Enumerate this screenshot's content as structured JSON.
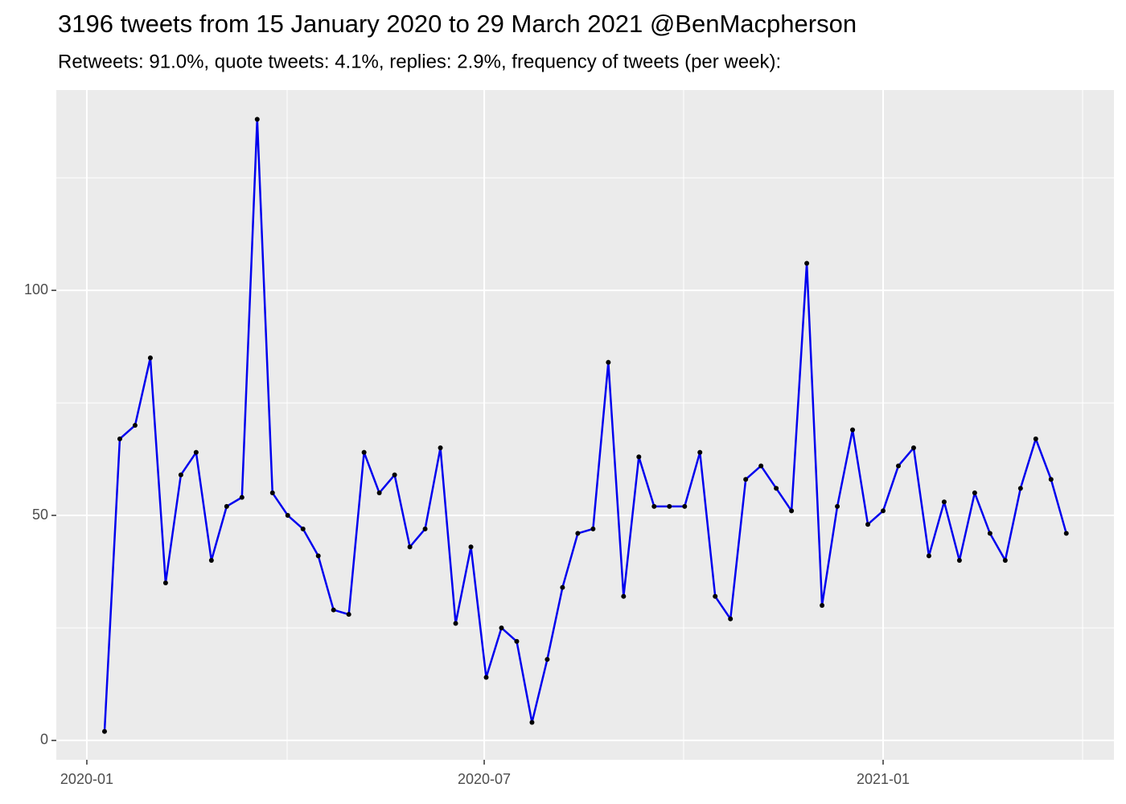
{
  "chart_data": {
    "type": "line",
    "title": "3196 tweets from 15 January 2020 to 29 March 2021 @BenMacpherson",
    "subtitle": "Retweets: 91.0%, quote tweets: 4.1%, replies: 2.9%, frequency of tweets (per week):",
    "values": [
      2,
      67,
      70,
      85,
      35,
      59,
      64,
      40,
      52,
      54,
      138,
      55,
      50,
      47,
      41,
      29,
      28,
      64,
      55,
      59,
      43,
      47,
      65,
      26,
      43,
      14,
      25,
      22,
      4,
      18,
      34,
      46,
      47,
      84,
      32,
      63,
      52,
      52,
      52,
      64,
      32,
      27,
      58,
      61,
      56,
      51,
      106,
      30,
      52,
      69,
      48,
      51,
      61,
      65,
      41,
      53,
      40,
      55,
      46,
      40,
      56,
      67,
      58,
      46
    ],
    "color": "#0000ee",
    "point_color": "#000000",
    "xlim": [
      -3.16,
      66.12
    ],
    "xticks": [
      {
        "value": -1.16,
        "label": "2020-01"
      },
      {
        "value": 24.87,
        "label": "2020-07"
      },
      {
        "value": 51.0,
        "label": "2021-01"
      }
    ],
    "xminor": [
      11.96,
      37.93,
      64.07
    ],
    "ylim": [
      -4.3,
      144.5
    ],
    "yticks": [
      0,
      50,
      100
    ],
    "yminor": [
      25,
      75,
      125
    ],
    "grid": true
  }
}
